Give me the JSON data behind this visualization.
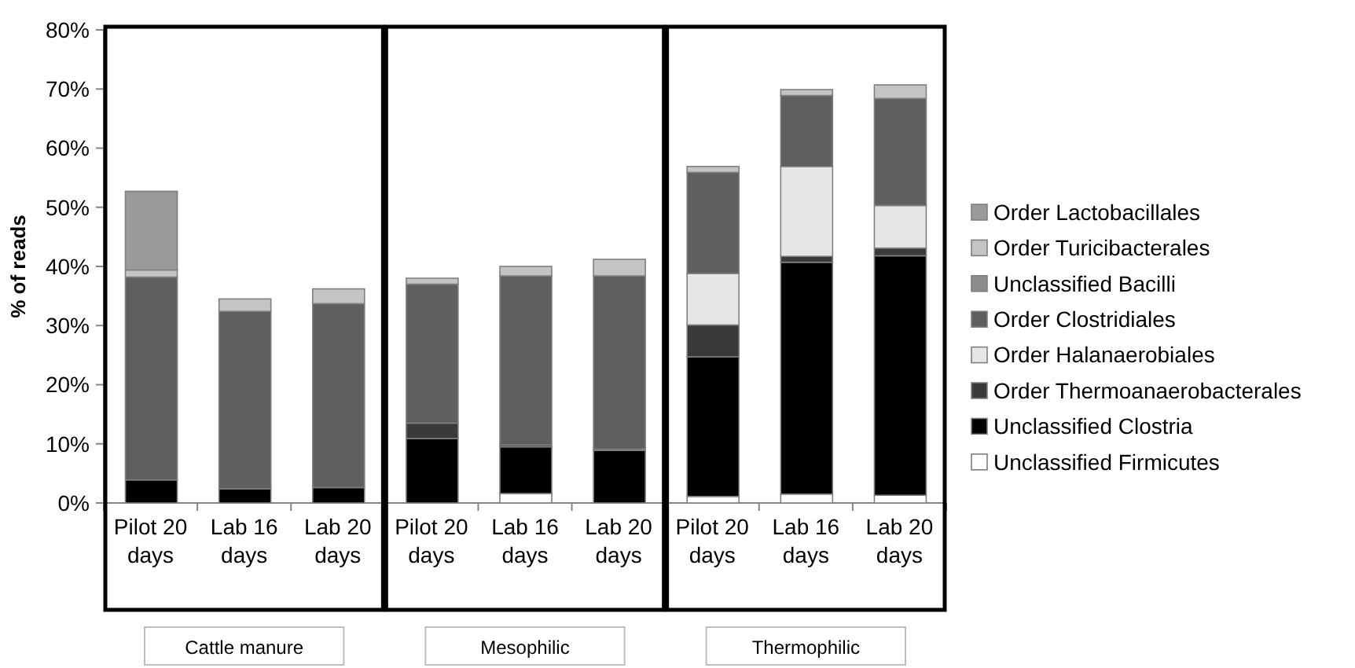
{
  "chart_data": {
    "type": "bar",
    "stacked": true,
    "ylabel": "% of reads",
    "categories": [
      "Pilot 20 days",
      "Lab 16 days",
      "Lab 20 days",
      "Pilot 20 days",
      "Lab 16 days",
      "Lab 20 days",
      "Pilot 20 days",
      "Lab 16 days",
      "Lab 20 days"
    ],
    "series": [
      {
        "name": "Unclassified Firmicutes",
        "color": "#ffffff",
        "values": [
          null,
          null,
          null,
          null,
          1.6,
          null,
          1.1,
          1.5,
          1.3
        ]
      },
      {
        "name": "Unclassified Clostria",
        "color": "#000000",
        "values": [
          3.9,
          2.4,
          2.6,
          10.9,
          7.9,
          8.9,
          23.6,
          39.2,
          40.5
        ]
      },
      {
        "name": "Order Thermoanaerobacterales",
        "color": "#3a3a3a",
        "values": [
          0,
          0,
          0,
          2.6,
          0.3,
          0.2,
          5.4,
          1,
          1.3
        ]
      },
      {
        "name": "Order Halanaerobiales",
        "color": "#e6e6e6",
        "values": [
          0,
          0,
          0,
          0,
          0,
          0,
          8.7,
          15.2,
          7.2
        ]
      },
      {
        "name": "Order Clostridiales",
        "color": "#5f5f5f",
        "values": [
          34.3,
          30,
          31.1,
          23.5,
          28.6,
          29.3,
          17.1,
          12,
          18.1
        ]
      },
      {
        "name": "Unclassified Bacilli",
        "color": "#8c8c8c",
        "values": [
          0,
          0,
          0,
          0,
          0,
          0,
          0,
          0,
          0
        ]
      },
      {
        "name": "Order Turicibacterales",
        "color": "#c4c4c4",
        "values": [
          1.2,
          2.1,
          2.5,
          1,
          1.6,
          2.8,
          1,
          1,
          2.3
        ]
      },
      {
        "name": "Order Lactobacillales",
        "color": "#9a9a9a",
        "values": [
          13.3,
          0,
          0,
          0,
          0,
          0,
          0,
          0,
          0
        ]
      }
    ],
    "ylim": [
      0,
      80
    ],
    "yticks": [
      {
        "value": 0,
        "label": "0%"
      },
      {
        "value": 10,
        "label": "10%"
      },
      {
        "value": 20,
        "label": "20%"
      },
      {
        "value": 30,
        "label": "30%"
      },
      {
        "value": 40,
        "label": "40%"
      },
      {
        "value": 50,
        "label": "50%"
      },
      {
        "value": 60,
        "label": "60%"
      },
      {
        "value": 70,
        "label": "70%"
      },
      {
        "value": 80,
        "label": "80%"
      }
    ],
    "annotations": [
      "Cattle manure",
      "Mesophilic",
      "Thermophilic"
    ],
    "legend": "right"
  }
}
